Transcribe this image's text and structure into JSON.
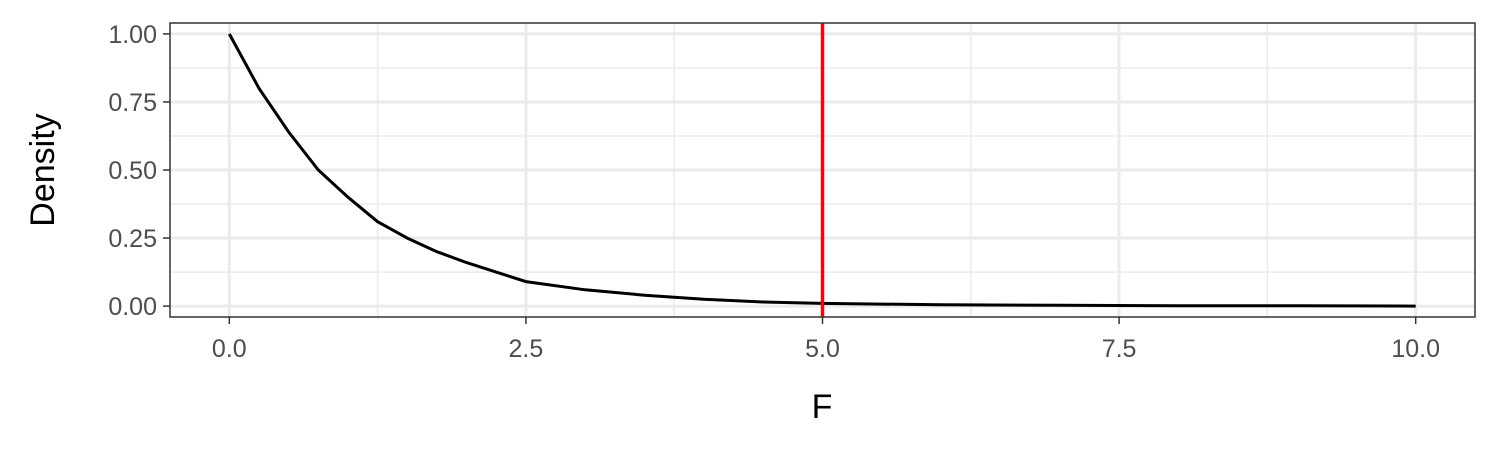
{
  "chart_data": {
    "type": "line",
    "title": "",
    "xlabel": "F",
    "ylabel": "Density",
    "xlim": [
      -0.5,
      10.5
    ],
    "ylim": [
      -0.04,
      1.04
    ],
    "x_ticks": [
      {
        "value": 0,
        "label": "0.0"
      },
      {
        "value": 2.5,
        "label": "2.5"
      },
      {
        "value": 5,
        "label": "5.0"
      },
      {
        "value": 7.5,
        "label": "7.5"
      },
      {
        "value": 10,
        "label": "10.0"
      }
    ],
    "y_ticks": [
      {
        "value": 0,
        "label": "0.00"
      },
      {
        "value": 0.25,
        "label": "0.25"
      },
      {
        "value": 0.5,
        "label": "0.50"
      },
      {
        "value": 0.75,
        "label": "0.75"
      },
      {
        "value": 1,
        "label": "1.00"
      }
    ],
    "grid": true,
    "series": [
      {
        "x": [
          0,
          0.25,
          0.5,
          0.75,
          1,
          1.25,
          1.5,
          1.75,
          2,
          2.5,
          3,
          3.5,
          4,
          4.5,
          5,
          6,
          7,
          8,
          9,
          10
        ],
        "y": [
          1.0,
          0.8,
          0.64,
          0.5,
          0.4,
          0.31,
          0.25,
          0.2,
          0.16,
          0.09,
          0.06,
          0.04,
          0.025,
          0.015,
          0.01,
          0.005,
          0.003,
          0.001,
          0.001,
          0.0
        ],
        "color": "#000000"
      }
    ],
    "vline": {
      "x": 5,
      "color": "#ff0000"
    }
  }
}
